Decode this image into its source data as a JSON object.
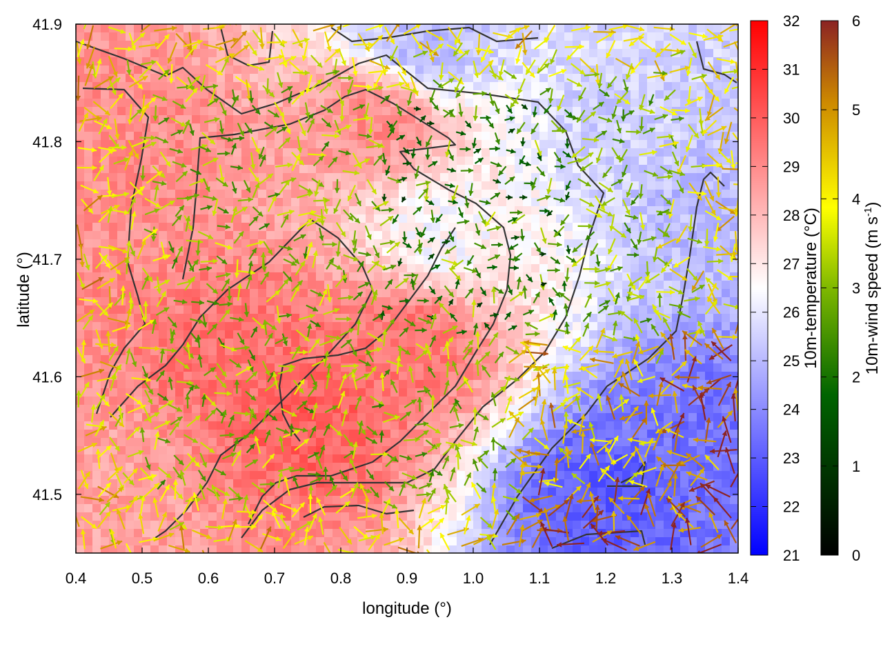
{
  "chart_data": {
    "type": "heatmap",
    "subtype": "vector-field-overlay",
    "xlabel": "longitude (°)",
    "ylabel": "latitude (°)",
    "xlim": [
      0.4,
      1.4
    ],
    "ylim": [
      41.45,
      41.9
    ],
    "x_ticks": [
      "0.4",
      "0.5",
      "0.6",
      "0.7",
      "0.8",
      "0.9",
      "1.0",
      "1.1",
      "1.2",
      "1.3",
      "1.4"
    ],
    "y_ticks": [
      "41.5",
      "41.6",
      "41.7",
      "41.8",
      "41.9"
    ],
    "temperature_colorbar": {
      "label": "10m-temperature (°C)",
      "range": [
        21,
        32
      ],
      "ticks": [
        "21",
        "22",
        "23",
        "24",
        "25",
        "26",
        "27",
        "28",
        "29",
        "30",
        "31",
        "32"
      ],
      "colors": [
        "#0000ff",
        "#ffffff",
        "#ff0000"
      ]
    },
    "wind_colorbar": {
      "label_main": "10m-wind speed (m s",
      "label_sup": "-1",
      "label_end": ")",
      "range": [
        0,
        6
      ],
      "ticks": [
        "0",
        "1",
        "2",
        "3",
        "4",
        "5",
        "6"
      ],
      "colors": [
        "#000000",
        "#006400",
        "#ffff00",
        "#cc8800",
        "#8b2323"
      ]
    },
    "temperature_regions": [
      {
        "lon": 0.5,
        "lat": 41.8,
        "temp": 29
      },
      {
        "lon": 0.65,
        "lat": 41.62,
        "temp": 29.5
      },
      {
        "lon": 0.75,
        "lat": 41.57,
        "temp": 30
      },
      {
        "lon": 0.9,
        "lat": 41.63,
        "temp": 29.5
      },
      {
        "lon": 0.85,
        "lat": 41.82,
        "temp": 29
      },
      {
        "lon": 0.95,
        "lat": 41.72,
        "temp": 26.5
      },
      {
        "lon": 1.2,
        "lat": 41.5,
        "temp": 23
      },
      {
        "lon": 1.35,
        "lat": 41.55,
        "temp": 23.5
      },
      {
        "lon": 0.92,
        "lat": 41.885,
        "temp": 25
      },
      {
        "lon": 1.25,
        "lat": 41.82,
        "temp": 25.5
      },
      {
        "lon": 1.38,
        "lat": 41.75,
        "temp": 25
      },
      {
        "lon": 0.45,
        "lat": 41.5,
        "temp": 28.5
      }
    ]
  }
}
